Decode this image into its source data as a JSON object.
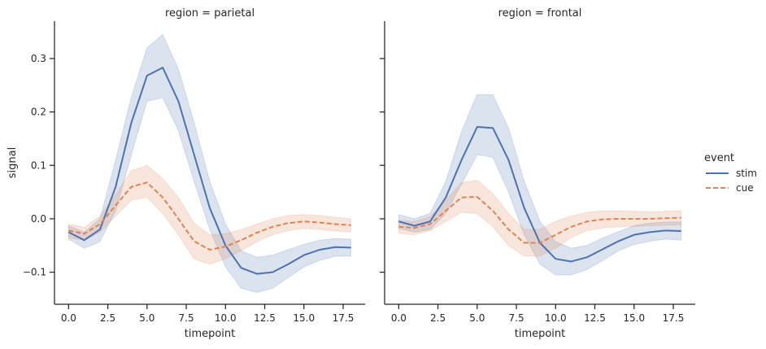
{
  "chart_data": {
    "type": "line",
    "ylabel": "signal",
    "ylim": [
      -0.16,
      0.37
    ],
    "yticks": [
      -0.1,
      0.0,
      0.1,
      0.2,
      0.3
    ],
    "ytick_labels": [
      "−0.1",
      "0.0",
      "0.1",
      "0.2",
      "0.3"
    ],
    "xticks": [
      0,
      2.5,
      5,
      7.5,
      10,
      12.5,
      15,
      17.5
    ],
    "xtick_labels": [
      "0.0",
      "2.5",
      "5.0",
      "7.5",
      "10.0",
      "12.5",
      "15.0",
      "17.5"
    ],
    "legend": {
      "title": "event",
      "placement": "right",
      "entries": [
        {
          "name": "stim",
          "color": "#4c72b0",
          "style": "solid"
        },
        {
          "name": "cue",
          "color": "#dd8452",
          "style": "dashed"
        }
      ]
    },
    "panels": [
      {
        "title": "region = parietal",
        "xlabel": "timepoint",
        "xlim": [
          -0.9,
          18.9
        ],
        "x": [
          0,
          1,
          2,
          3,
          4,
          5,
          6,
          7,
          8,
          9,
          10,
          11,
          12,
          13,
          14,
          15,
          16,
          17,
          18
        ],
        "series": [
          {
            "name": "stim",
            "color": "#4c72b0",
            "dash": "solid",
            "values": [
              -0.025,
              -0.04,
              -0.02,
              0.06,
              0.18,
              0.268,
              0.283,
              0.22,
              0.12,
              0.02,
              -0.05,
              -0.092,
              -0.103,
              -0.1,
              -0.085,
              -0.068,
              -0.058,
              -0.053,
              -0.054
            ],
            "lower": [
              -0.038,
              -0.055,
              -0.043,
              0.015,
              0.12,
              0.22,
              0.227,
              0.165,
              0.07,
              -0.02,
              -0.09,
              -0.13,
              -0.138,
              -0.13,
              -0.11,
              -0.09,
              -0.078,
              -0.07,
              -0.07
            ],
            "upper": [
              -0.013,
              -0.025,
              0.0,
              0.11,
              0.228,
              0.32,
              0.345,
              0.28,
              0.18,
              0.07,
              -0.01,
              -0.06,
              -0.072,
              -0.068,
              -0.058,
              -0.048,
              -0.04,
              -0.037,
              -0.038
            ]
          },
          {
            "name": "cue",
            "color": "#dd8452",
            "dash": "dashed",
            "values": [
              -0.022,
              -0.028,
              -0.01,
              0.025,
              0.06,
              0.068,
              0.04,
              0.0,
              -0.042,
              -0.058,
              -0.052,
              -0.04,
              -0.026,
              -0.015,
              -0.008,
              -0.005,
              -0.007,
              -0.01,
              -0.012
            ],
            "lower": [
              -0.035,
              -0.04,
              -0.025,
              0.005,
              0.035,
              0.04,
              0.01,
              -0.03,
              -0.075,
              -0.085,
              -0.075,
              -0.06,
              -0.043,
              -0.03,
              -0.022,
              -0.018,
              -0.02,
              -0.023,
              -0.025
            ],
            "upper": [
              -0.01,
              -0.016,
              0.005,
              0.045,
              0.09,
              0.1,
              0.075,
              0.04,
              -0.008,
              -0.03,
              -0.028,
              -0.02,
              -0.01,
              0.0,
              0.006,
              0.008,
              0.006,
              0.003,
              0.0
            ]
          }
        ]
      },
      {
        "title": "region = frontal",
        "xlabel": "timepoint",
        "xlim": [
          -0.9,
          18.9
        ],
        "x": [
          0,
          1,
          2,
          3,
          4,
          5,
          6,
          7,
          8,
          9,
          10,
          11,
          12,
          13,
          14,
          15,
          16,
          17,
          18
        ],
        "series": [
          {
            "name": "stim",
            "color": "#4c72b0",
            "dash": "solid",
            "values": [
              -0.005,
              -0.013,
              -0.005,
              0.04,
              0.11,
              0.172,
              0.17,
              0.11,
              0.02,
              -0.045,
              -0.075,
              -0.08,
              -0.072,
              -0.057,
              -0.042,
              -0.03,
              -0.025,
              -0.022,
              -0.023
            ],
            "lower": [
              -0.018,
              -0.025,
              -0.02,
              0.01,
              0.065,
              0.12,
              0.115,
              0.05,
              -0.03,
              -0.085,
              -0.105,
              -0.105,
              -0.095,
              -0.078,
              -0.06,
              -0.048,
              -0.042,
              -0.038,
              -0.04
            ],
            "upper": [
              0.008,
              0.0,
              0.01,
              0.07,
              0.163,
              0.233,
              0.232,
              0.17,
              0.07,
              -0.005,
              -0.043,
              -0.055,
              -0.05,
              -0.036,
              -0.024,
              -0.013,
              -0.008,
              -0.006,
              -0.006
            ]
          },
          {
            "name": "cue",
            "color": "#dd8452",
            "dash": "dashed",
            "values": [
              -0.015,
              -0.017,
              -0.01,
              0.015,
              0.04,
              0.041,
              0.015,
              -0.02,
              -0.045,
              -0.045,
              -0.03,
              -0.015,
              -0.005,
              -0.001,
              0.0,
              0.0,
              0.0,
              0.001,
              0.002
            ],
            "lower": [
              -0.027,
              -0.03,
              -0.022,
              -0.005,
              0.012,
              0.01,
              -0.015,
              -0.05,
              -0.07,
              -0.07,
              -0.055,
              -0.035,
              -0.022,
              -0.017,
              -0.015,
              -0.014,
              -0.013,
              -0.012,
              -0.011
            ],
            "upper": [
              -0.003,
              -0.005,
              0.004,
              0.035,
              0.068,
              0.072,
              0.047,
              0.01,
              -0.02,
              -0.02,
              -0.005,
              0.005,
              0.012,
              0.015,
              0.015,
              0.014,
              0.013,
              0.014,
              0.015
            ]
          }
        ]
      }
    ]
  }
}
